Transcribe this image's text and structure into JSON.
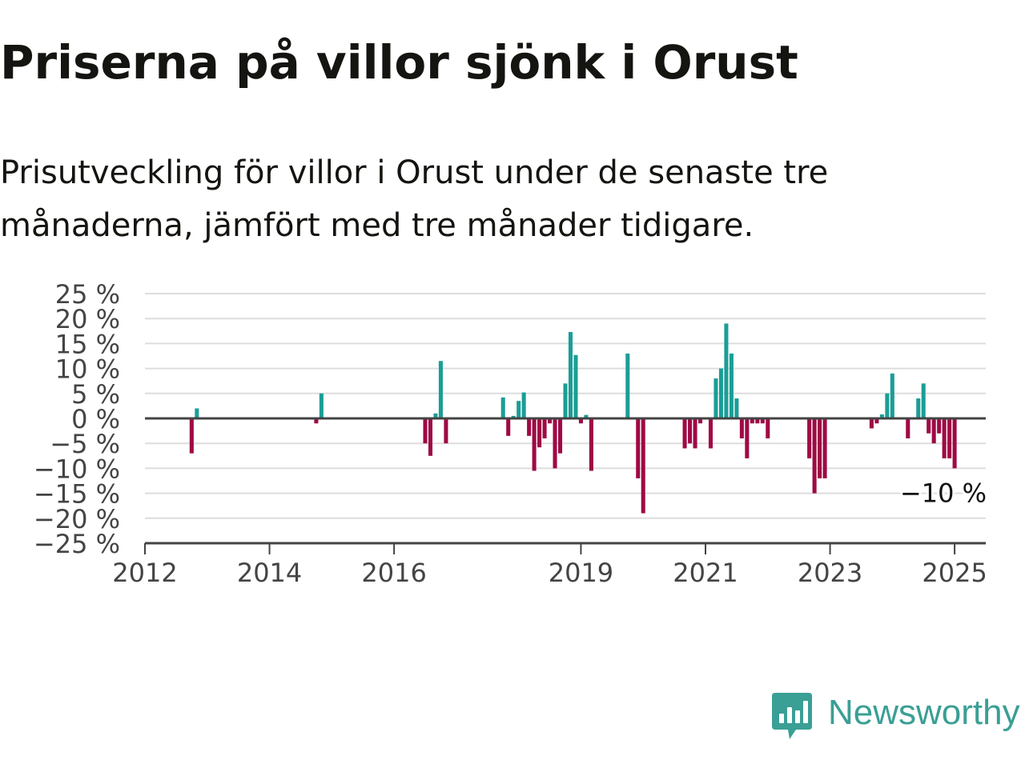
{
  "title": "Priserna på villor sjönk i Orust",
  "subtitle": "Prisutveckling för villor i Orust under de senaste tre månaderna, jämfört med tre månader tidigare.",
  "brand": {
    "name": "Newsworthy",
    "color": "#3a9f95",
    "icon": "bar-chart-speech-bubble-icon"
  },
  "colors": {
    "positive": "#1a9e96",
    "negative": "#9e0a45",
    "gridline": "#dddddd",
    "axis": "#444444",
    "text": "#141410"
  },
  "chart_data": {
    "type": "bar",
    "x_type": "date",
    "xlim": [
      "2012-01",
      "2025-07"
    ],
    "ylim": [
      -25,
      25
    ],
    "yticks": [
      25,
      20,
      15,
      10,
      5,
      0,
      -5,
      -10,
      -15,
      -20,
      -25
    ],
    "ytick_labels": [
      "25 %",
      "20 %",
      "15 %",
      "10 %",
      "5 %",
      "0 %",
      "−5 %",
      "−10 %",
      "−15 %",
      "−20 %",
      "−25 %"
    ],
    "xticks": [
      "2012-01",
      "2014-01",
      "2016-01",
      "2019-01",
      "2021-01",
      "2023-01",
      "2025-01"
    ],
    "xtick_labels": [
      "2012",
      "2014",
      "2016",
      "2019",
      "2021",
      "2023",
      "2025"
    ],
    "grid": true,
    "last_value_label": "−10 %",
    "data": [
      [
        "2012-10",
        -7
      ],
      [
        "2012-11",
        2
      ],
      [
        "2014-10",
        -1
      ],
      [
        "2014-11",
        5
      ],
      [
        "2016-07",
        -5
      ],
      [
        "2016-08",
        -7.5
      ],
      [
        "2016-09",
        1
      ],
      [
        "2016-10",
        11.5
      ],
      [
        "2016-11",
        -5
      ],
      [
        "2017-10",
        4.2
      ],
      [
        "2017-11",
        -3.5
      ],
      [
        "2017-12",
        0.5
      ],
      [
        "2018-01",
        3.5
      ],
      [
        "2018-02",
        5.2
      ],
      [
        "2018-03",
        -3.5
      ],
      [
        "2018-04",
        -10.5
      ],
      [
        "2018-05",
        -5.8
      ],
      [
        "2018-06",
        -4
      ],
      [
        "2018-07",
        -1
      ],
      [
        "2018-08",
        -10
      ],
      [
        "2018-09",
        -7
      ],
      [
        "2018-10",
        7
      ],
      [
        "2018-11",
        17.3
      ],
      [
        "2018-12",
        12.7
      ],
      [
        "2019-01",
        -1
      ],
      [
        "2019-02",
        0.7
      ],
      [
        "2019-03",
        -10.5
      ],
      [
        "2019-10",
        13
      ],
      [
        "2019-12",
        -12
      ],
      [
        "2020-01",
        -19
      ],
      [
        "2020-09",
        -6
      ],
      [
        "2020-10",
        -5
      ],
      [
        "2020-11",
        -6
      ],
      [
        "2020-12",
        -1
      ],
      [
        "2021-02",
        -6
      ],
      [
        "2021-03",
        8
      ],
      [
        "2021-04",
        10
      ],
      [
        "2021-05",
        19
      ],
      [
        "2021-06",
        13
      ],
      [
        "2021-07",
        4
      ],
      [
        "2021-08",
        -4
      ],
      [
        "2021-09",
        -8
      ],
      [
        "2021-10",
        -1
      ],
      [
        "2021-11",
        -1
      ],
      [
        "2021-12",
        -1
      ],
      [
        "2022-01",
        -4
      ],
      [
        "2022-09",
        -8
      ],
      [
        "2022-10",
        -15
      ],
      [
        "2022-11",
        -12
      ],
      [
        "2022-12",
        -12
      ],
      [
        "2023-09",
        -2
      ],
      [
        "2023-10",
        -1
      ],
      [
        "2023-11",
        0.8
      ],
      [
        "2023-12",
        5
      ],
      [
        "2024-01",
        9
      ],
      [
        "2024-04",
        -4
      ],
      [
        "2024-06",
        4
      ],
      [
        "2024-07",
        7
      ],
      [
        "2024-08",
        -3
      ],
      [
        "2024-09",
        -5
      ],
      [
        "2024-10",
        -3
      ],
      [
        "2024-11",
        -8
      ],
      [
        "2024-12",
        -8
      ],
      [
        "2025-01",
        -10
      ]
    ]
  }
}
